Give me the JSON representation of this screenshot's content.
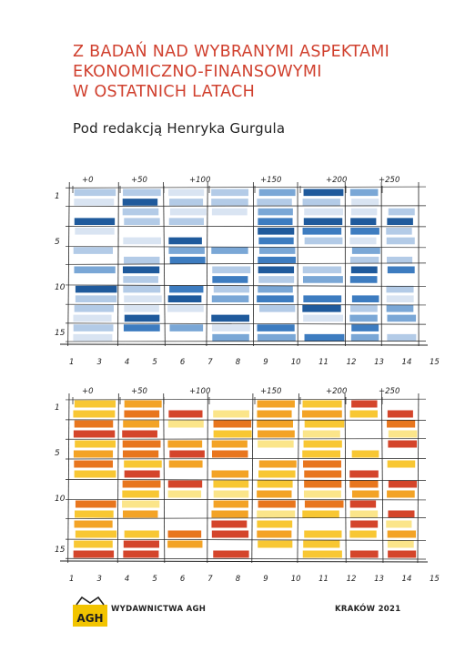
{
  "book": {
    "title_lines": [
      "Z BADAŃ NAD WYBRANYMI ASPEKTAMI",
      "EKONOMICZNO-FINANSOWYMI",
      "W OSTATNICH LATACH"
    ],
    "subtitle": "Pod redakcją Henryka Gurgula"
  },
  "illustration": {
    "top_axis_labels": [
      "+0",
      "+50",
      "+100",
      "+150",
      "+200",
      "+250"
    ],
    "left_axis_labels": [
      "1",
      "5",
      "10",
      "15"
    ],
    "bottom_axis_labels": [
      "1",
      "3",
      "4",
      "5",
      "6",
      "7",
      "8",
      "9",
      "10",
      "11",
      "12",
      "13",
      "14",
      "15"
    ],
    "blue_palette": [
      "#ffffff",
      "#d9e4f2",
      "#b3cbe7",
      "#7aa7d6",
      "#3d7cc0",
      "#1f5a9c"
    ],
    "warm_palette": [
      "#ffffff",
      "#fbe58a",
      "#f8c733",
      "#f3a326",
      "#e8761e",
      "#d4452b"
    ]
  },
  "footer": {
    "logo_text": "AGH",
    "publisher": "WYDAWNICTWA AGH",
    "place_year": "KRAKÓW 2021"
  }
}
